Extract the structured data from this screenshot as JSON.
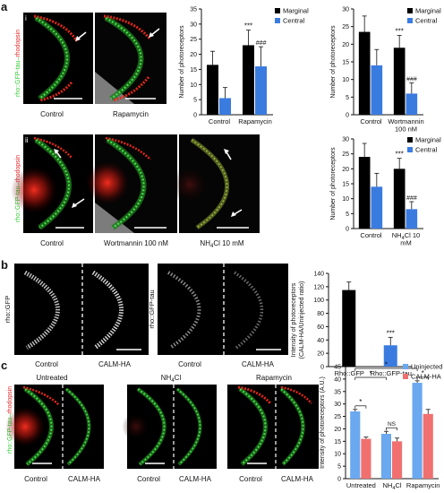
{
  "panels": {
    "a": {
      "letter": "a",
      "row_i": {
        "label": "i",
        "stain_label": {
          "rho": "rho::GFP-tau",
          "sep": "–",
          "rhodopsin": "rhodopsin"
        },
        "images": [
          "Control",
          "Rapamycin"
        ]
      },
      "row_ii": {
        "label": "ii",
        "stain_label": {
          "rho": "rho::GFP-tau",
          "sep": "–",
          "rhodopsin": "rhodopsin"
        },
        "images": [
          "Control",
          "Wortmannin 100 nM",
          "NH4Cl 10 mM"
        ]
      }
    },
    "b": {
      "letter": "b",
      "images": [
        {
          "ylabel": "rho::GFP",
          "left": "Control",
          "right": "CALM-HA"
        },
        {
          "ylabel": "rho::GFP-tau",
          "left": "Control",
          "right": "CALM-HA"
        }
      ]
    },
    "c": {
      "letter": "c",
      "stain_label": {
        "rho": "rho::GFP-tau",
        "sep": "–",
        "rhodopsin": "rhodopsin"
      },
      "groups": [
        {
          "title": "Untreated",
          "left": "Control",
          "right": "CALM-HA"
        },
        {
          "title": "NH4Cl",
          "left": "Control",
          "right": "CALM-HA"
        },
        {
          "title": "Rapamycin",
          "left": "Control",
          "right": "CALM-HA"
        }
      ]
    }
  },
  "colors": {
    "marginal": "#000000",
    "central": "#3a7be0",
    "uninjected": "#6aa8f0",
    "calm_ha": "#f07070",
    "gfp_green": "#3cd23c",
    "rhodopsin_red": "#e8281e"
  },
  "chart_data": [
    {
      "type": "bar",
      "ylabel": "Number of photoreceptors",
      "categories": [
        "Control",
        "Rapamycin"
      ],
      "series": [
        {
          "name": "Marginal",
          "values": [
            16.5,
            23
          ],
          "errors": [
            4.5,
            5
          ]
        },
        {
          "name": "Central",
          "values": [
            5.5,
            16
          ],
          "errors": [
            3.5,
            6.5
          ]
        }
      ],
      "significance": [
        {
          "category": "Rapamycin",
          "series": "Marginal",
          "text": "***"
        },
        {
          "category": "Rapamycin",
          "series": "Central",
          "text": "###"
        }
      ],
      "yticks": [
        0,
        5,
        10,
        15,
        20,
        25,
        30,
        35
      ],
      "ylim": [
        0,
        35
      ],
      "legend": "top-right"
    },
    {
      "type": "bar",
      "ylabel": "Number of photoreceptors",
      "categories": [
        "Control",
        "Wortmannin 100 nM"
      ],
      "series": [
        {
          "name": "Marginal",
          "values": [
            23.5,
            19
          ],
          "errors": [
            4.5,
            3.5
          ]
        },
        {
          "name": "Central",
          "values": [
            14,
            6
          ],
          "errors": [
            4.5,
            3
          ]
        }
      ],
      "significance": [
        {
          "category": "Wortmannin 100 nM",
          "series": "Marginal",
          "text": "***"
        },
        {
          "category": "Wortmannin 100 nM",
          "series": "Central",
          "text": "###"
        }
      ],
      "yticks": [
        0,
        5,
        10,
        15,
        20,
        25,
        30
      ],
      "ylim": [
        0,
        30
      ],
      "legend": "top-right"
    },
    {
      "type": "bar",
      "ylabel": "Number of photoreceptors",
      "categories": [
        "Control",
        "NH4Cl 10 mM"
      ],
      "series": [
        {
          "name": "Marginal",
          "values": [
            24,
            20
          ],
          "errors": [
            4.5,
            3.5
          ]
        },
        {
          "name": "Central",
          "values": [
            14,
            6.5
          ],
          "errors": [
            4.5,
            2.5
          ]
        }
      ],
      "significance": [
        {
          "category": "NH4Cl 10 mM",
          "series": "Marginal",
          "text": "***"
        },
        {
          "category": "NH4Cl 10 mM",
          "series": "Central",
          "text": "###"
        }
      ],
      "yticks": [
        0,
        5,
        10,
        15,
        20,
        25,
        30
      ],
      "ylim": [
        0,
        30
      ],
      "legend": "top-right"
    },
    {
      "type": "bar",
      "ylabel": "Intensity of photoreceptors (CALM-HA/Uninjected ratio)",
      "categories": [
        "Rho::GFP",
        "Rho::GFP-tau"
      ],
      "series": [
        {
          "name": "",
          "values": [
            115,
            32
          ],
          "errors": [
            12,
            12
          ],
          "colors": [
            "#000000",
            "#3a7be0"
          ]
        }
      ],
      "significance": [
        {
          "category": "Rho::GFP-tau",
          "text": "***"
        }
      ],
      "yticks": [
        0,
        20,
        40,
        60,
        80,
        100,
        120,
        140
      ],
      "ylim": [
        0,
        140
      ]
    },
    {
      "type": "bar",
      "ylabel": "Intensity of photoreceptors (A.U.)",
      "categories": [
        "Untreated",
        "NH4Cl",
        "Rapamycin"
      ],
      "series": [
        {
          "name": "Uninjected",
          "values": [
            27,
            18,
            38.5
          ],
          "errors": [
            0.8,
            1.0,
            0.8
          ]
        },
        {
          "name": "CALM-HA",
          "values": [
            16,
            15,
            26
          ],
          "errors": [
            0.7,
            1.3,
            1.8
          ]
        }
      ],
      "significance": [
        {
          "between": [
            "Untreated Uninjected",
            "Untreated CALM-HA"
          ],
          "text": "*"
        },
        {
          "between": [
            "NH4Cl Uninjected",
            "NH4Cl CALM-HA"
          ],
          "text": "NS"
        },
        {
          "between": [
            "Rapamycin Uninjected",
            "Rapamycin CALM-HA"
          ],
          "text": "*"
        },
        {
          "between": [
            "Untreated Uninjected",
            "NH4Cl Uninjected"
          ],
          "text": "*"
        },
        {
          "between": [
            "Untreated Uninjected",
            "Rapamycin Uninjected"
          ],
          "text": "*"
        }
      ],
      "yticks": [
        0,
        5,
        10,
        15,
        20,
        25,
        30,
        35,
        40,
        45
      ],
      "ylim": [
        0,
        45
      ],
      "legend": "top-right"
    }
  ]
}
